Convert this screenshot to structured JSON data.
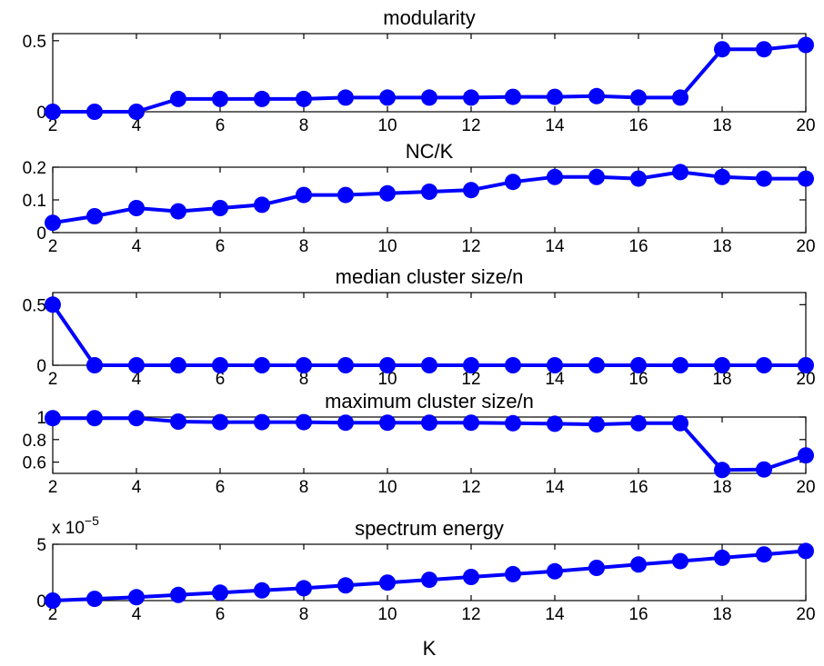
{
  "chart_data": [
    {
      "type": "line",
      "title": "modularity",
      "xlabel": "",
      "ylabel": "",
      "xlim": [
        2,
        20
      ],
      "ylim": [
        0,
        0.55
      ],
      "xticks": [
        "2",
        "4",
        "6",
        "8",
        "10",
        "12",
        "14",
        "16",
        "18",
        "20"
      ],
      "yticks": [
        "0",
        "0.5"
      ],
      "x": [
        2,
        3,
        4,
        5,
        6,
        7,
        8,
        9,
        10,
        11,
        12,
        13,
        14,
        15,
        16,
        17,
        18,
        19,
        20
      ],
      "values": [
        0.0,
        0.0,
        0.0,
        0.09,
        0.09,
        0.09,
        0.09,
        0.1,
        0.1,
        0.1,
        0.1,
        0.105,
        0.105,
        0.11,
        0.1,
        0.1,
        0.44,
        0.44,
        0.47
      ]
    },
    {
      "type": "line",
      "title": "NC/K",
      "xlabel": "",
      "ylabel": "",
      "xlim": [
        2,
        20
      ],
      "ylim": [
        0,
        0.2
      ],
      "xticks": [
        "2",
        "4",
        "6",
        "8",
        "10",
        "12",
        "14",
        "16",
        "18",
        "20"
      ],
      "yticks": [
        "0",
        "0.1",
        "0.2"
      ],
      "x": [
        2,
        3,
        4,
        5,
        6,
        7,
        8,
        9,
        10,
        11,
        12,
        13,
        14,
        15,
        16,
        17,
        18,
        19,
        20
      ],
      "values": [
        0.03,
        0.05,
        0.075,
        0.065,
        0.075,
        0.085,
        0.115,
        0.115,
        0.12,
        0.125,
        0.13,
        0.155,
        0.17,
        0.17,
        0.165,
        0.185,
        0.17,
        0.165,
        0.165
      ]
    },
    {
      "type": "line",
      "title": "median cluster size/n",
      "xlabel": "",
      "ylabel": "",
      "xlim": [
        2,
        20
      ],
      "ylim": [
        0,
        0.6
      ],
      "xticks": [
        "2",
        "4",
        "6",
        "8",
        "10",
        "12",
        "14",
        "16",
        "18",
        "20"
      ],
      "yticks": [
        "0",
        "0.5"
      ],
      "x": [
        2,
        3,
        4,
        5,
        6,
        7,
        8,
        9,
        10,
        11,
        12,
        13,
        14,
        15,
        16,
        17,
        18,
        19,
        20
      ],
      "values": [
        0.5,
        0.0,
        0.0,
        0.0,
        0.0,
        0.0,
        0.0,
        0.0,
        0.0,
        0.0,
        0.0,
        0.0,
        0.0,
        0.0,
        0.0,
        0.0,
        0.0,
        0.0,
        0.0
      ]
    },
    {
      "type": "line",
      "title": "maximum cluster size/n",
      "xlabel": "",
      "ylabel": "",
      "xlim": [
        2,
        20
      ],
      "ylim": [
        0.5,
        1.0
      ],
      "xticks": [
        "2",
        "4",
        "6",
        "8",
        "10",
        "12",
        "14",
        "16",
        "18",
        "20"
      ],
      "yticks": [
        "0.6",
        "0.8",
        "1"
      ],
      "x": [
        2,
        3,
        4,
        5,
        6,
        7,
        8,
        9,
        10,
        11,
        12,
        13,
        14,
        15,
        16,
        17,
        18,
        19,
        20
      ],
      "values": [
        0.99,
        0.99,
        0.99,
        0.96,
        0.955,
        0.955,
        0.955,
        0.95,
        0.95,
        0.95,
        0.95,
        0.945,
        0.94,
        0.935,
        0.945,
        0.945,
        0.53,
        0.535,
        0.66
      ]
    },
    {
      "type": "line",
      "title": "spectrum energy",
      "xlabel": "K",
      "ylabel": "",
      "exponent_label": "x 10",
      "exponent_power": "−5",
      "xlim": [
        2,
        20
      ],
      "ylim": [
        0,
        5
      ],
      "xticks": [
        "2",
        "4",
        "6",
        "8",
        "10",
        "12",
        "14",
        "16",
        "18",
        "20"
      ],
      "yticks": [
        "0",
        "5"
      ],
      "x": [
        2,
        3,
        4,
        5,
        6,
        7,
        8,
        9,
        10,
        11,
        12,
        13,
        14,
        15,
        16,
        17,
        18,
        19,
        20
      ],
      "values": [
        0.0,
        0.15,
        0.3,
        0.5,
        0.7,
        0.9,
        1.1,
        1.35,
        1.6,
        1.85,
        2.1,
        2.35,
        2.6,
        2.9,
        3.2,
        3.5,
        3.8,
        4.1,
        4.4
      ]
    }
  ],
  "colors": {
    "series": "#0000ff",
    "axes": "#000000",
    "background": "#ffffff"
  }
}
